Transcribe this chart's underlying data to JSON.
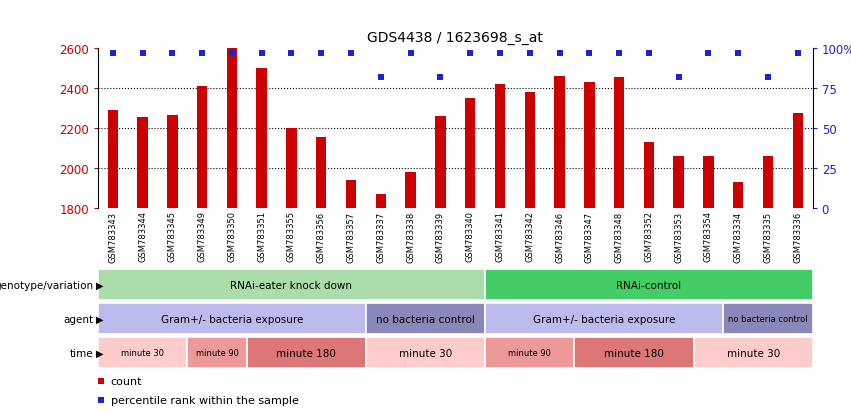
{
  "title": "GDS4438 / 1623698_s_at",
  "samples": [
    "GSM783343",
    "GSM783344",
    "GSM783345",
    "GSM783349",
    "GSM783350",
    "GSM783351",
    "GSM783355",
    "GSM783356",
    "GSM783357",
    "GSM783337",
    "GSM783338",
    "GSM783339",
    "GSM783340",
    "GSM783341",
    "GSM783342",
    "GSM783346",
    "GSM783347",
    "GSM783348",
    "GSM783352",
    "GSM783353",
    "GSM783354",
    "GSM783334",
    "GSM783335",
    "GSM783336"
  ],
  "bar_values": [
    2290,
    2255,
    2265,
    2410,
    2600,
    2500,
    2200,
    2155,
    1940,
    1870,
    1980,
    2260,
    2350,
    2420,
    2380,
    2460,
    2430,
    2455,
    2130,
    2060,
    2060,
    1930,
    2060,
    2275
  ],
  "percentile_values": [
    97,
    97,
    97,
    97,
    97,
    97,
    97,
    97,
    97,
    82,
    97,
    82,
    97,
    97,
    97,
    97,
    97,
    97,
    97,
    82,
    97,
    97,
    82,
    97
  ],
  "bar_color": "#cc0000",
  "percentile_color": "#2222cc",
  "ymin": 1800,
  "ymax": 2600,
  "yticks": [
    1800,
    2000,
    2200,
    2400,
    2600
  ],
  "right_yticks": [
    0,
    25,
    50,
    75,
    100
  ],
  "right_ylabels": [
    "0",
    "25",
    "50",
    "75",
    "100%"
  ],
  "genotype_blocks": [
    {
      "label": "RNAi-eater knock down",
      "start": 0,
      "end": 13,
      "color": "#aaddaa"
    },
    {
      "label": "RNAi-control",
      "start": 13,
      "end": 24,
      "color": "#44cc66"
    }
  ],
  "agent_blocks": [
    {
      "label": "Gram+/- bacteria exposure",
      "start": 0,
      "end": 9,
      "color": "#bbbbee"
    },
    {
      "label": "no bacteria control",
      "start": 9,
      "end": 13,
      "color": "#8888bb"
    },
    {
      "label": "Gram+/- bacteria exposure",
      "start": 13,
      "end": 21,
      "color": "#bbbbee"
    },
    {
      "label": "no bacteria control",
      "start": 21,
      "end": 24,
      "color": "#8888bb"
    }
  ],
  "time_blocks": [
    {
      "label": "minute 30",
      "start": 0,
      "end": 3,
      "color": "#ffcccc"
    },
    {
      "label": "minute 90",
      "start": 3,
      "end": 5,
      "color": "#ee9999"
    },
    {
      "label": "minute 180",
      "start": 5,
      "end": 9,
      "color": "#dd7777"
    },
    {
      "label": "minute 30",
      "start": 9,
      "end": 13,
      "color": "#ffcccc"
    },
    {
      "label": "minute 90",
      "start": 13,
      "end": 16,
      "color": "#ee9999"
    },
    {
      "label": "minute 180",
      "start": 16,
      "end": 20,
      "color": "#dd7777"
    },
    {
      "label": "minute 30",
      "start": 20,
      "end": 24,
      "color": "#ffcccc"
    }
  ],
  "legend_items": [
    {
      "label": "count",
      "color": "#cc0000"
    },
    {
      "label": "percentile rank within the sample",
      "color": "#2222cc"
    }
  ],
  "fig_width": 8.51,
  "fig_height": 4.14,
  "dpi": 100
}
